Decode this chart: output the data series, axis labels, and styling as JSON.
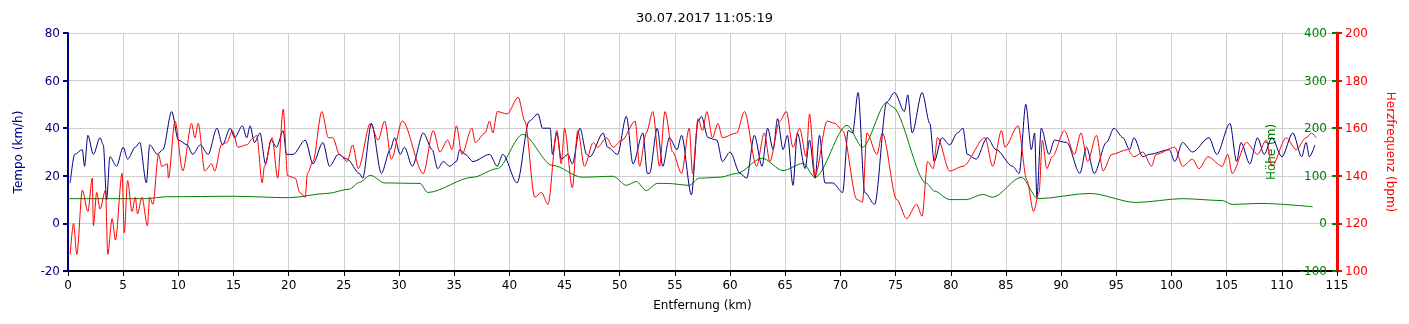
{
  "chart_data": {
    "type": "line",
    "title": "30.07.2017 11:05:19",
    "xlabel": "Entfernung (km)",
    "ylabel": "Tempo (km/h)",
    "y2label": "Höhe (m)",
    "y3label": "Herzfrequenz (bpm)",
    "xlim": [
      0,
      115
    ],
    "xticks": [
      0,
      5,
      10,
      15,
      20,
      25,
      30,
      35,
      40,
      45,
      50,
      55,
      60,
      65,
      70,
      75,
      80,
      85,
      90,
      95,
      100,
      105,
      110,
      115
    ],
    "ylim": [
      -20,
      80
    ],
    "yticks": [
      -20,
      0,
      20,
      40,
      60,
      80
    ],
    "y2lim": [
      -100,
      400
    ],
    "y2ticks": [
      -100,
      0,
      100,
      200,
      300,
      400
    ],
    "y3lim": [
      100,
      200
    ],
    "y3ticks": [
      100,
      120,
      140,
      160,
      180,
      200
    ],
    "grid": true,
    "marker": "none",
    "line_style": "solid",
    "series": [
      {
        "color": "#008000",
        "axis": "y2",
        "x": [
          0,
          7,
          9,
          15,
          20,
          23.5,
          25.5,
          26.4,
          27.4,
          28.7,
          31.9,
          32.6,
          36.7,
          38.9,
          41.2,
          43.9,
          46.6,
          49.4,
          50.6,
          51.5,
          52.4,
          53.4,
          54.3,
          56.3,
          57.2,
          59.1,
          60.6,
          62.9,
          64.8,
          66.6,
          67.7,
          70.6,
          72,
          74.2,
          74.7,
          77.8,
          78.5,
          79.9,
          81.4,
          82.9,
          83.8,
          86.4,
          87.9,
          92.6,
          96.8,
          101,
          104.6,
          105.5,
          108.2,
          112.8
        ],
        "values": [
          52,
          52,
          56,
          57,
          54,
          63,
          72,
          86,
          101,
          85,
          84,
          65,
          97,
          115,
          187,
          122,
          97,
          99,
          80,
          88,
          69,
          84,
          84,
          80,
          95,
          97,
          105,
          137,
          111,
          126,
          97,
          206,
          160,
          254,
          245,
          84,
          68,
          50,
          50,
          61,
          55,
          97,
          52,
          63,
          44,
          52,
          48,
          40,
          42,
          35
        ]
      },
      {
        "color": "#000080",
        "x": [
          0.2,
          0.6,
          1.3,
          1.5,
          1.8,
          2.3,
          2.9,
          3.2,
          3.5,
          3.8,
          4.4,
          5,
          5.4,
          6.1,
          6.5,
          7.1,
          7.4,
          8.1,
          8.6,
          9.4,
          10,
          10.8,
          11.3,
          12,
          12.7,
          13.5,
          14,
          14.7,
          15.1,
          15.8,
          16.2,
          16.5,
          16.9,
          17.4,
          17.9,
          18.4,
          18.9,
          19.5,
          19.8,
          20.4,
          21.5,
          22.2,
          23.1,
          23.7,
          24.5,
          25.3,
          26.4,
          26.7,
          27.5,
          28.4,
          29.2,
          29.6,
          30.1,
          30.5,
          31.2,
          32.2,
          33,
          33.5,
          34,
          34.6,
          35.2,
          35.5,
          36,
          36.7,
          38.2,
          38.9,
          39.4,
          40.7,
          41.8,
          42.6,
          43,
          43.7,
          43.9,
          44.3,
          44.7,
          45.3,
          45.7,
          46.4,
          47,
          47.3,
          48.5,
          48.9,
          49.8,
          50.6,
          51.2,
          52.1,
          52.5,
          52.7,
          53.4,
          53.9,
          54.5,
          55.2,
          55.6,
          56.5,
          57.1,
          57.4,
          58,
          58.8,
          59.3,
          60,
          60.9,
          61.5,
          62.2,
          62.9,
          63.4,
          63.9,
          64.3,
          64.8,
          65.2,
          65.7,
          66.1,
          66.8,
          67.2,
          67.7,
          68.1,
          68.6,
          69.3,
          70.2,
          70.7,
          71.1,
          71.6,
          72.2,
          73.1,
          74.2,
          74.9,
          75.8,
          76.1,
          76.5,
          77.4,
          78.1,
          78.5,
          79.2,
          79.9,
          80.6,
          81.1,
          81.5,
          82.3,
          83.3,
          84.1,
          85.6,
          86.2,
          86.8,
          87.3,
          87.6,
          87.8,
          88.2,
          88.9,
          89.4,
          90.5,
          91.7,
          92.3,
          93,
          94.1,
          94.8,
          95.6,
          96.2,
          96.6,
          97.4,
          98,
          99.8,
          100.3,
          101,
          101.9,
          103.4,
          104.1,
          105.3,
          105.9,
          106.3,
          107.1,
          107.8,
          108.4,
          109.1,
          110,
          111,
          111.8,
          112.2,
          112.5,
          113
        ],
        "values": [
          17,
          29,
          31,
          24,
          37,
          29,
          36,
          33,
          10,
          28,
          24,
          32,
          27,
          32,
          34,
          17,
          33,
          29,
          31,
          47,
          35,
          33,
          29,
          33,
          29,
          40,
          33,
          40,
          36,
          41,
          36,
          41,
          34,
          38,
          25,
          35,
          32,
          39,
          29,
          29,
          35,
          25,
          34,
          24,
          29,
          27,
          21,
          19,
          42,
          21,
          31,
          36,
          29,
          32,
          24,
          38,
          31,
          23,
          26,
          24,
          26,
          31,
          29,
          26,
          29,
          24,
          29,
          17,
          43,
          46,
          40,
          40,
          29,
          38,
          27,
          29,
          25,
          40,
          29,
          28,
          38,
          32,
          29,
          45,
          25,
          38,
          21,
          21,
          40,
          24,
          36,
          31,
          37,
          12,
          43,
          45,
          36,
          35,
          26,
          30,
          21,
          19,
          37,
          24,
          40,
          31,
          44,
          31,
          37,
          16,
          38,
          23,
          35,
          19,
          37,
          17,
          17,
          13,
          39,
          38,
          55,
          13,
          8,
          51,
          55,
          47,
          54,
          38,
          55,
          42,
          26,
          36,
          33,
          38,
          40,
          29,
          27,
          36,
          31,
          24,
          21,
          50,
          31,
          38,
          11,
          40,
          29,
          35,
          34,
          21,
          32,
          21,
          34,
          40,
          36,
          31,
          36,
          28,
          29,
          31,
          26,
          34,
          30,
          36,
          29,
          42,
          26,
          34,
          25,
          36,
          29,
          36,
          28,
          38,
          28,
          34,
          28,
          33
        ]
      },
      {
        "color": "#ff0000",
        "axis": "y3",
        "x": [
          0.2,
          0.5,
          0.8,
          1.3,
          1.8,
          2.2,
          2.3,
          2.6,
          2.9,
          3.4,
          3.6,
          4,
          4.3,
          4.9,
          5.1,
          5.4,
          5.8,
          6.1,
          6.3,
          6.7,
          7.2,
          7.4,
          7.7,
          8.2,
          8.5,
          9,
          9.1,
          9.7,
          10.4,
          11.2,
          11.5,
          11.8,
          12.4,
          13,
          13.3,
          13.9,
          14.4,
          14.9,
          15.4,
          16.2,
          16.8,
          17.1,
          17.6,
          17.8,
          18.5,
          19,
          19.5,
          19.9,
          20.6,
          21,
          21.5,
          21.7,
          22.2,
          23,
          23.6,
          24,
          24.6,
          25.3,
          25.8,
          26.3,
          27.4,
          28.1,
          28.7,
          29.3,
          30.3,
          32.2,
          33.1,
          33.7,
          34.4,
          34.8,
          35.2,
          35.7,
          36.6,
          36.9,
          37.8,
          38.2,
          38.5,
          38.9,
          39.8,
          40.8,
          41.4,
          42.3,
          42.9,
          43.5,
          44.3,
          44.7,
          45,
          45.7,
          46.2,
          46.8,
          47.6,
          48,
          48.8,
          49.4,
          50.2,
          51.4,
          51.8,
          52.4,
          53,
          53.6,
          54.1,
          54.8,
          55.6,
          56.3,
          56.6,
          57.1,
          57.5,
          57.9,
          58.4,
          58.9,
          59.3,
          60.6,
          61.3,
          62.4,
          63.1,
          63.6,
          64.5,
          65.1,
          65.7,
          66.3,
          66.9,
          67.2,
          67.7,
          68.8,
          69.5,
          70.2,
          71.5,
          72,
          72.4,
          73.3,
          73.8,
          75.1,
          76,
          76.9,
          77.4,
          77.9,
          78.4,
          78.8,
          79.9,
          81.1,
          83.1,
          83.8,
          84.6,
          84.9,
          86.1,
          86.9,
          87.5,
          88,
          88.3,
          88.7,
          89.2,
          90.3,
          91.2,
          91.8,
          92.4,
          93.2,
          93.8,
          94.6,
          96,
          96.6,
          97.4,
          98.2,
          98.6,
          100.3,
          101,
          101.9,
          102.5,
          103.3,
          104.6,
          105.1,
          105.5,
          106.8,
          107.8,
          108.6,
          109.1,
          110.4,
          111.3,
          112.2,
          112.7,
          113.1
        ],
        "values": [
          107,
          120,
          107,
          134,
          125,
          139,
          119,
          133,
          126,
          134,
          107,
          122,
          113,
          141,
          116,
          138,
          125,
          131,
          124,
          131,
          119,
          131,
          128,
          149,
          144,
          145,
          139,
          163,
          142,
          162,
          156,
          162,
          142,
          145,
          142,
          153,
          154,
          159,
          152,
          153,
          156,
          157,
          137,
          144,
          156,
          139,
          168,
          140,
          139,
          133,
          131,
          141,
          146,
          167,
          156,
          156,
          149,
          146,
          153,
          143,
          162,
          155,
          163,
          147,
          163,
          141,
          159,
          150,
          155,
          151,
          161,
          149,
          160,
          154,
          158,
          163,
          158,
          167,
          166,
          173,
          163,
          131,
          133,
          128,
          159,
          145,
          160,
          135,
          159,
          144,
          154,
          152,
          156,
          152,
          155,
          163,
          144,
          158,
          167,
          144,
          167,
          150,
          141,
          160,
          141,
          164,
          159,
          167,
          156,
          162,
          156,
          158,
          167,
          144,
          158,
          146,
          163,
          167,
          152,
          160,
          148,
          166,
          140,
          163,
          162,
          159,
          130,
          129,
          158,
          149,
          158,
          130,
          122,
          128,
          123,
          146,
          143,
          156,
          142,
          144,
          156,
          144,
          159,
          152,
          161,
          138,
          125,
          133,
          155,
          143,
          148,
          159,
          149,
          158,
          146,
          157,
          142,
          149,
          151,
          148,
          150,
          144,
          149,
          152,
          144,
          147,
          143,
          148,
          144,
          149,
          141,
          154,
          149,
          155,
          144,
          156,
          151,
          156,
          158,
          156
        ]
      }
    ]
  }
}
